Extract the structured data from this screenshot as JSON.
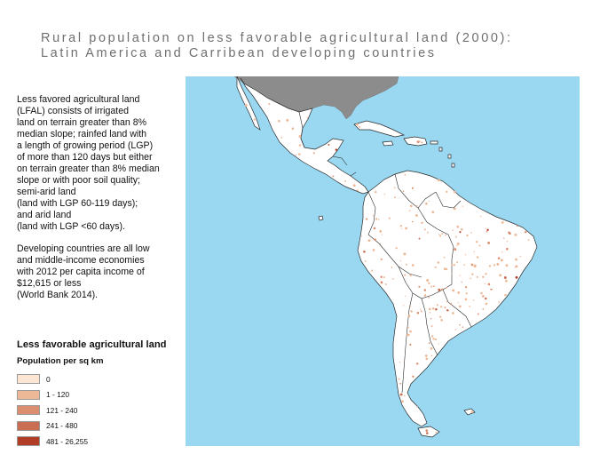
{
  "title": {
    "line1": "Rural population on less favorable agricultural land (2000):",
    "line2": "Latin America and Carribean developing countries"
  },
  "description": {
    "para1": "Less favored agricultural land\n(LFAL) consists of irrigated\nland on terrain greater than 8%\nmedian slope; rainfed land with\na length of growing period (LGP)\nof more than 120 days but either\non terrain greater than 8% median\nslope or with poor soil quality;\nsemi-arid land\n(land with LGP 60-119 days);\nand arid land\n(land with LGP <60 days).",
    "para2": "Developing countries are all low\nand middle-income economies\nwith 2012 per capita income of\n$12,615 or less\n(World Bank 2014)."
  },
  "legend": {
    "title": "Less favorable agricultural land",
    "subtitle": "Population per sq km",
    "items": [
      {
        "label": "0",
        "color": "#fde6d4"
      },
      {
        "label": "1 - 120",
        "color": "#edb896"
      },
      {
        "label": "121 - 240",
        "color": "#db8f6f"
      },
      {
        "label": "241 - 480",
        "color": "#c96e53"
      },
      {
        "label": "481 - 26,255",
        "color": "#b13d26"
      }
    ]
  },
  "map": {
    "ocean_color": "#9ad8f2",
    "land_color": "#ffffff",
    "no_data_color": "#8c8c8c",
    "border_color": "#2a2a2a"
  }
}
